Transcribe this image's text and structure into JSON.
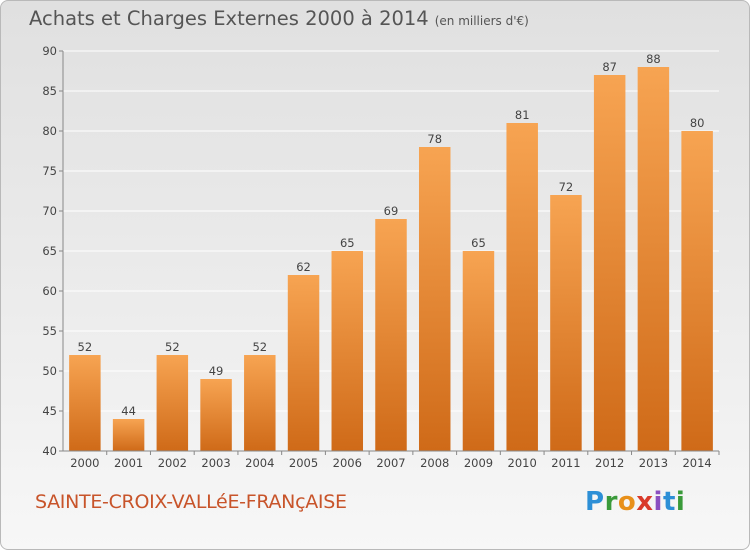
{
  "chart_data": {
    "type": "bar",
    "title": "Achats et Charges Externes 2000 à 2014",
    "subtitle": "(en milliers d'€)",
    "categories": [
      "2000",
      "2001",
      "2002",
      "2003",
      "2004",
      "2005",
      "2006",
      "2007",
      "2008",
      "2009",
      "2010",
      "2011",
      "2012",
      "2013",
      "2014"
    ],
    "values": [
      52,
      44,
      52,
      49,
      52,
      62,
      65,
      69,
      78,
      65,
      81,
      72,
      87,
      88,
      80
    ],
    "ylim": [
      40,
      90
    ],
    "yticks": [
      40,
      45,
      50,
      55,
      60,
      65,
      70,
      75,
      80,
      85,
      90
    ],
    "grid": true,
    "xlabel": "",
    "ylabel": ""
  },
  "commune": "SAINTE-CROIX-VALLéE-FRANçAISE",
  "logo": "Proxiti",
  "colors": {
    "bar_top": "#f7a452",
    "bar_bottom": "#cf6a18",
    "grid": "#ffffff",
    "title": "#555555",
    "commune": "#c8542a"
  }
}
